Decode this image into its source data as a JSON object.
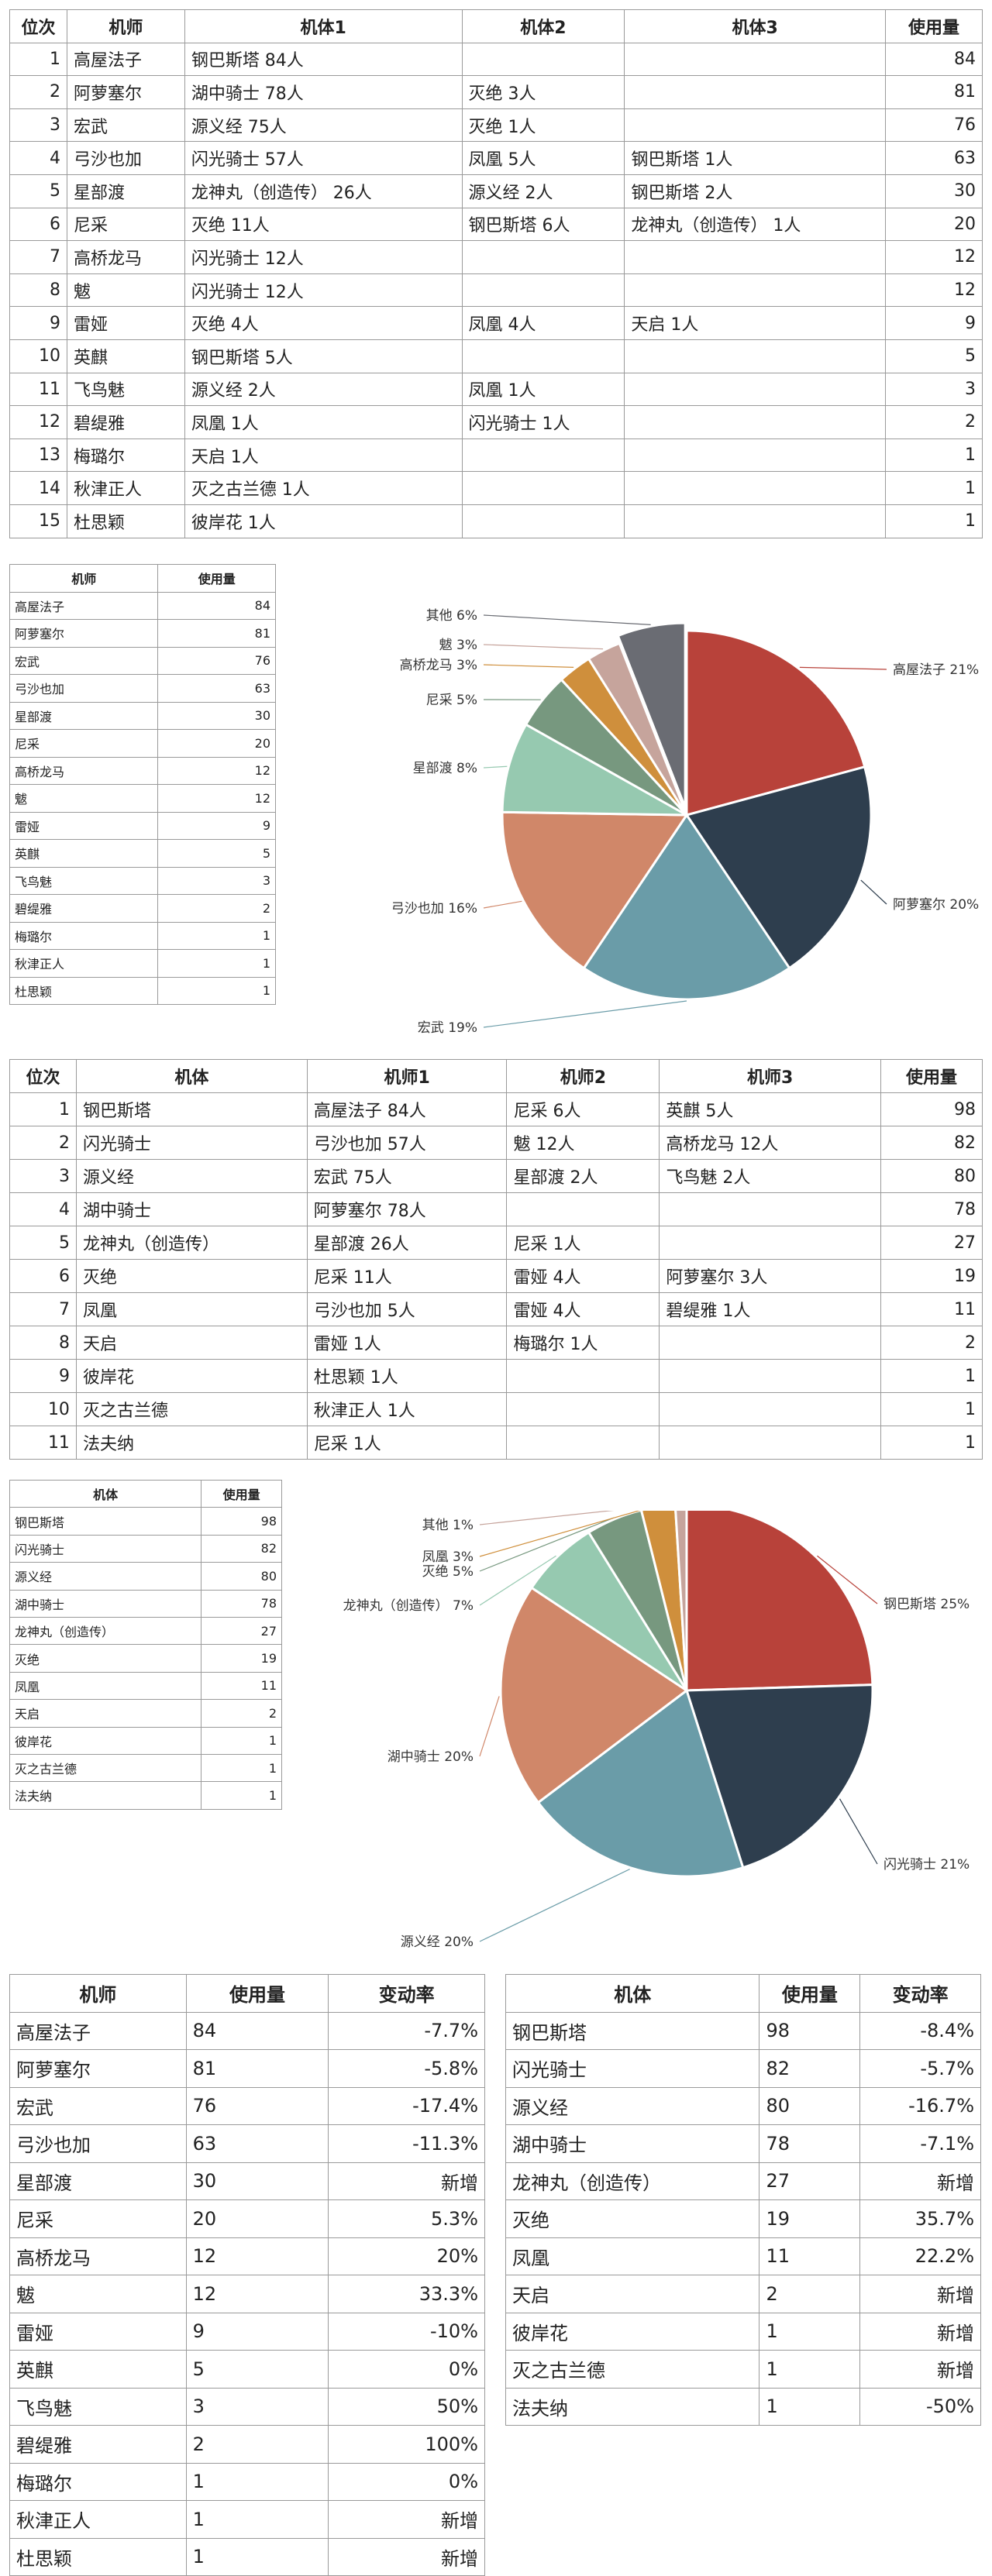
{
  "table1": {
    "headers": [
      "位次",
      "机师",
      "机体1",
      "机体2",
      "机体3",
      "使用量"
    ],
    "rows": [
      [
        "1",
        "高屋法子",
        "钢巴斯塔 84人",
        "",
        "",
        "84"
      ],
      [
        "2",
        "阿萝塞尔",
        "湖中骑士 78人",
        "灭绝 3人",
        "",
        "81"
      ],
      [
        "3",
        "宏武",
        "源义经 75人",
        "灭绝 1人",
        "",
        "76"
      ],
      [
        "4",
        "弓沙也加",
        "闪光骑士 57人",
        "凤凰 5人",
        "钢巴斯塔 1人",
        "63"
      ],
      [
        "5",
        "星部渡",
        "龙神丸（创造传） 26人",
        "源义经 2人",
        "钢巴斯塔 2人",
        "30"
      ],
      [
        "6",
        "尼采",
        "灭绝 11人",
        "钢巴斯塔 6人",
        "龙神丸（创造传） 1人",
        "20"
      ],
      [
        "7",
        "高桥龙马",
        "闪光骑士 12人",
        "",
        "",
        "12"
      ],
      [
        "8",
        "魃",
        "闪光骑士 12人",
        "",
        "",
        "12"
      ],
      [
        "9",
        "雷娅",
        "灭绝 4人",
        "凤凰 4人",
        "天启 1人",
        "9"
      ],
      [
        "10",
        "英麒",
        "钢巴斯塔 5人",
        "",
        "",
        "5"
      ],
      [
        "11",
        "飞鸟魅",
        "源义经 2人",
        "凤凰 1人",
        "",
        "3"
      ],
      [
        "12",
        "碧缇雅",
        "凤凰 1人",
        "闪光骑士 1人",
        "",
        "2"
      ],
      [
        "13",
        "梅璐尔",
        "天启 1人",
        "",
        "",
        "1"
      ],
      [
        "14",
        "秋津正人",
        "灭之古兰德 1人",
        "",
        "",
        "1"
      ],
      [
        "15",
        "杜思颖",
        "彼岸花 1人",
        "",
        "",
        "1"
      ]
    ]
  },
  "summary1": {
    "headers": [
      "机师",
      "使用量"
    ],
    "rows": [
      [
        "高屋法子",
        "84"
      ],
      [
        "阿萝塞尔",
        "81"
      ],
      [
        "宏武",
        "76"
      ],
      [
        "弓沙也加",
        "63"
      ],
      [
        "星部渡",
        "30"
      ],
      [
        "尼采",
        "20"
      ],
      [
        "高桥龙马",
        "12"
      ],
      [
        "魃",
        "12"
      ],
      [
        "雷娅",
        "9"
      ],
      [
        "英麒",
        "5"
      ],
      [
        "飞鸟魅",
        "3"
      ],
      [
        "碧缇雅",
        "2"
      ],
      [
        "梅璐尔",
        "1"
      ],
      [
        "秋津正人",
        "1"
      ],
      [
        "杜思颖",
        "1"
      ]
    ]
  },
  "table2": {
    "headers": [
      "位次",
      "机体",
      "机师1",
      "机师2",
      "机师3",
      "使用量"
    ],
    "rows": [
      [
        "1",
        "钢巴斯塔",
        "高屋法子 84人",
        "尼采 6人",
        "英麒 5人",
        "98"
      ],
      [
        "2",
        "闪光骑士",
        "弓沙也加 57人",
        "魃 12人",
        "高桥龙马 12人",
        "82"
      ],
      [
        "3",
        "源义经",
        "宏武 75人",
        "星部渡 2人",
        "飞鸟魅 2人",
        "80"
      ],
      [
        "4",
        "湖中骑士",
        "阿萝塞尔 78人",
        "",
        "",
        "78"
      ],
      [
        "5",
        "龙神丸（创造传）",
        "星部渡 26人",
        "尼采 1人",
        "",
        "27"
      ],
      [
        "6",
        "灭绝",
        "尼采 11人",
        "雷娅 4人",
        "阿萝塞尔 3人",
        "19"
      ],
      [
        "7",
        "凤凰",
        "弓沙也加 5人",
        "雷娅 4人",
        "碧缇雅 1人",
        "11"
      ],
      [
        "8",
        "天启",
        "雷娅 1人",
        "梅璐尔 1人",
        "",
        "2"
      ],
      [
        "9",
        "彼岸花",
        "杜思颖 1人",
        "",
        "",
        "1"
      ],
      [
        "10",
        "灭之古兰德",
        "秋津正人 1人",
        "",
        "",
        "1"
      ],
      [
        "11",
        "法夫纳",
        "尼采 1人",
        "",
        "",
        "1"
      ]
    ]
  },
  "summary2": {
    "headers": [
      "机体",
      "使用量"
    ],
    "rows": [
      [
        "钢巴斯塔",
        "98"
      ],
      [
        "闪光骑士",
        "82"
      ],
      [
        "源义经",
        "80"
      ],
      [
        "湖中骑士",
        "78"
      ],
      [
        "龙神丸（创造传）",
        "27"
      ],
      [
        "灭绝",
        "19"
      ],
      [
        "凤凰",
        "11"
      ],
      [
        "天启",
        "2"
      ],
      [
        "彼岸花",
        "1"
      ],
      [
        "灭之古兰德",
        "1"
      ],
      [
        "法夫纳",
        "1"
      ]
    ]
  },
  "bottom1": {
    "headers": [
      "机师",
      "使用量",
      "变动率"
    ],
    "rows": [
      [
        "高屋法子",
        "84",
        "-7.7%"
      ],
      [
        "阿萝塞尔",
        "81",
        "-5.8%"
      ],
      [
        "宏武",
        "76",
        "-17.4%"
      ],
      [
        "弓沙也加",
        "63",
        "-11.3%"
      ],
      [
        "星部渡",
        "30",
        "新增"
      ],
      [
        "尼采",
        "20",
        "5.3%"
      ],
      [
        "高桥龙马",
        "12",
        "20%"
      ],
      [
        "魃",
        "12",
        "33.3%"
      ],
      [
        "雷娅",
        "9",
        "-10%"
      ],
      [
        "英麒",
        "5",
        "0%"
      ],
      [
        "飞鸟魅",
        "3",
        "50%"
      ],
      [
        "碧缇雅",
        "2",
        "100%"
      ],
      [
        "梅璐尔",
        "1",
        "0%"
      ],
      [
        "秋津正人",
        "1",
        "新增"
      ],
      [
        "杜思颖",
        "1",
        "新增"
      ]
    ]
  },
  "bottom2": {
    "headers": [
      "机体",
      "使用量",
      "变动率"
    ],
    "rows": [
      [
        "钢巴斯塔",
        "98",
        "-8.4%"
      ],
      [
        "闪光骑士",
        "82",
        "-5.7%"
      ],
      [
        "源义经",
        "80",
        "-16.7%"
      ],
      [
        "湖中骑士",
        "78",
        "-7.1%"
      ],
      [
        "龙神丸（创造传）",
        "27",
        "新增"
      ],
      [
        "灭绝",
        "19",
        "35.7%"
      ],
      [
        "凤凰",
        "11",
        "22.2%"
      ],
      [
        "天启",
        "2",
        "新增"
      ],
      [
        "彼岸花",
        "1",
        "新增"
      ],
      [
        "灭之古兰德",
        "1",
        "新增"
      ],
      [
        "法夫纳",
        "1",
        "-50%"
      ]
    ]
  },
  "chart_data": [
    {
      "type": "pie",
      "title": "",
      "slices": [
        {
          "label": "高屋法子",
          "value": 21,
          "display": "高屋法子 21%",
          "color": "#b8423a"
        },
        {
          "label": "阿萝塞尔",
          "value": 20,
          "display": "阿萝塞尔 20%",
          "color": "#2e3e4e"
        },
        {
          "label": "宏武",
          "value": 19,
          "display": "宏武 19%",
          "color": "#6a9ca8"
        },
        {
          "label": "弓沙也加",
          "value": 16,
          "display": "弓沙也加 16%",
          "color": "#d08769"
        },
        {
          "label": "星部渡",
          "value": 8,
          "display": "星部渡 8%",
          "color": "#96c9b0"
        },
        {
          "label": "尼采",
          "value": 5,
          "display": "尼采 5%",
          "color": "#77987f"
        },
        {
          "label": "高桥龙马",
          "value": 3,
          "display": "高桥龙马 3%",
          "color": "#cf8f3c"
        },
        {
          "label": "魃",
          "value": 3,
          "display": "魃 3%",
          "color": "#c6a49c"
        },
        {
          "label": "其他",
          "value": 6,
          "display": "其他 6%",
          "color": "#6a6c73"
        }
      ]
    },
    {
      "type": "pie",
      "title": "",
      "slices": [
        {
          "label": "钢巴斯塔",
          "value": 25,
          "display": "钢巴斯塔 25%",
          "color": "#b8423a"
        },
        {
          "label": "闪光骑士",
          "value": 21,
          "display": "闪光骑士 21%",
          "color": "#2e3e4e"
        },
        {
          "label": "源义经",
          "value": 20,
          "display": "源义经 20%",
          "color": "#6a9ca8"
        },
        {
          "label": "湖中骑士",
          "value": 20,
          "display": "湖中骑士 20%",
          "color": "#d08769"
        },
        {
          "label": "龙神丸（创造传）",
          "value": 7,
          "display": "龙神丸（创造传） 7%",
          "color": "#96c9b0"
        },
        {
          "label": "灭绝",
          "value": 5,
          "display": "灭绝 5%",
          "color": "#77987f"
        },
        {
          "label": "凤凰",
          "value": 3,
          "display": "凤凰 3%",
          "color": "#cf8f3c"
        },
        {
          "label": "其他",
          "value": 1,
          "display": "其他 1%",
          "color": "#c6a49c"
        }
      ]
    }
  ]
}
